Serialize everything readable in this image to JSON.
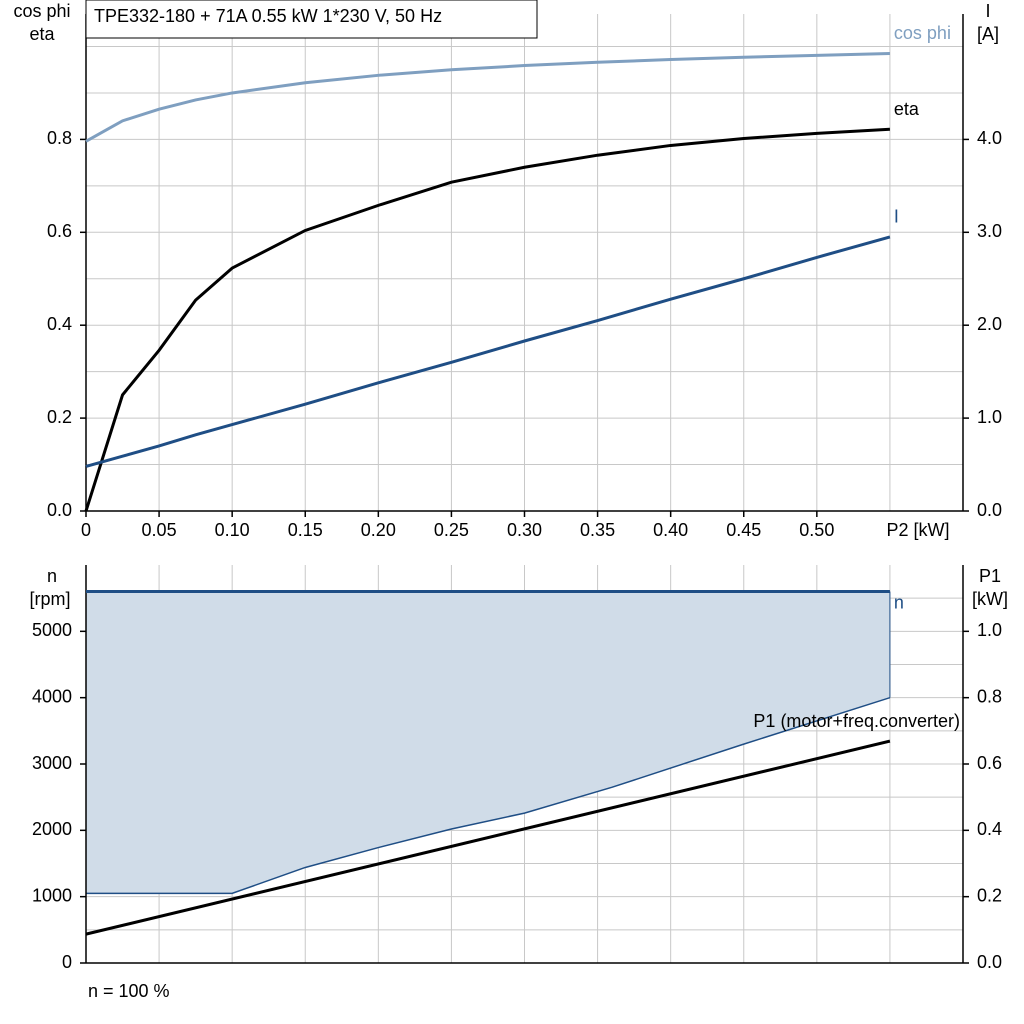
{
  "chart_data": [
    {
      "type": "line",
      "title": "TPE332-180 + 71A   0.55 kW   1*230 V, 50 Hz",
      "ylabel": [
        "cos phi",
        "eta"
      ],
      "y2label": [
        "I",
        "[A]"
      ],
      "xlabel": "P2 [kW]",
      "xlim": [
        0,
        0.6
      ],
      "ylim": [
        0,
        1.07
      ],
      "y2lim": [
        0,
        5.35
      ],
      "xticks": [
        0,
        0.05,
        {
          "value": 0.1,
          "label": "0.10"
        },
        0.15,
        {
          "value": 0.2,
          "label": "0.20"
        },
        0.25,
        {
          "value": 0.3,
          "label": "0.30"
        },
        0.35,
        {
          "value": 0.4,
          "label": "0.40"
        },
        0.45,
        {
          "value": 0.5,
          "label": "0.50"
        }
      ],
      "minor_xticks": [
        0.55
      ],
      "yticks": [
        {
          "value": 0,
          "label": "0.0"
        },
        0.2,
        0.4,
        0.6,
        0.8
      ],
      "minor_yticks": [
        0.1,
        0.3,
        0.5,
        0.7,
        0.9,
        1.0
      ],
      "y2ticks": [
        {
          "value": 0,
          "label": "0.0"
        },
        {
          "value": 1,
          "label": "1.0"
        },
        {
          "value": 2,
          "label": "2.0"
        },
        {
          "value": 3,
          "label": "3.0"
        },
        {
          "value": 4,
          "label": "4.0"
        }
      ],
      "grid": true,
      "x": [
        0,
        0.025,
        0.05,
        0.075,
        0.1,
        0.15,
        0.2,
        0.25,
        0.3,
        0.35,
        0.4,
        0.45,
        0.5,
        0.55
      ],
      "series": [
        {
          "name": "cos phi",
          "color": "#7f9fc0",
          "values": [
            0.796,
            0.84,
            0.865,
            0.885,
            0.9,
            0.922,
            0.938,
            0.95,
            0.959,
            0.966,
            0.972,
            0.977,
            0.981,
            0.985
          ]
        },
        {
          "name": "eta",
          "color": "#000000",
          "values": [
            0,
            0.25,
            0.346,
            0.454,
            0.523,
            0.604,
            0.658,
            0.708,
            0.74,
            0.766,
            0.787,
            0.802,
            0.813,
            0.822
          ]
        },
        {
          "name": "I",
          "color": "#1f4e85",
          "axis": "y2",
          "values": [
            0.48,
            0.59,
            0.7,
            0.82,
            0.93,
            1.15,
            1.38,
            1.6,
            1.83,
            2.05,
            2.28,
            2.5,
            2.73,
            2.95
          ]
        }
      ]
    },
    {
      "type": "line",
      "ylabel": [
        "n",
        "[rpm]"
      ],
      "y2label": [
        "P1",
        "[kW]"
      ],
      "xlim": [
        0,
        0.6
      ],
      "ylim": [
        0,
        6000
      ],
      "y2lim": [
        0,
        1.2
      ],
      "yticks": [
        0,
        1000,
        2000,
        3000,
        4000,
        5000
      ],
      "minor_yticks": [
        500,
        1500,
        2500,
        3500,
        4500,
        5500
      ],
      "y2ticks": [
        {
          "value": 0,
          "label": "0.0"
        },
        0.2,
        0.4,
        0.6,
        0.8,
        {
          "value": 1,
          "label": "1.0"
        }
      ],
      "grid": true,
      "x": [
        0,
        0.55
      ],
      "series": [
        {
          "name": "n",
          "color": "#1f4e85",
          "values": [
            5600,
            5600
          ]
        },
        {
          "name": "P1 (motor+freq.converter)",
          "color": "#000000",
          "axis": "y2",
          "values": [
            0.087,
            0.669
          ]
        }
      ],
      "range": {
        "color": "#1f4e85",
        "fill": "#d0dce8",
        "x": [
          0,
          0.1,
          0.15,
          0.2,
          0.25,
          0.3,
          0.36,
          0.45,
          0.55
        ],
        "values": [
          1050,
          1050,
          1440,
          1740,
          2020,
          2260,
          2650,
          3300,
          4000
        ]
      },
      "note": "n = 100 %"
    }
  ]
}
